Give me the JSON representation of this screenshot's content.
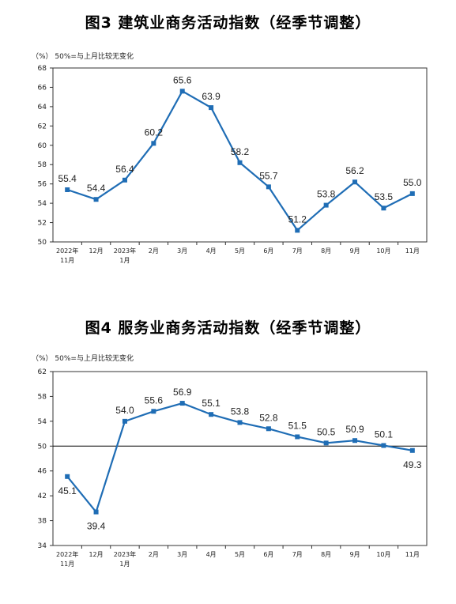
{
  "chart_data": [
    {
      "type": "line",
      "title": "图3  建筑业商务活动指数（经季节调整）",
      "unit_note": "（%）  50%=与上月比较无变化",
      "categories": [
        [
          "2022年",
          "11月"
        ],
        [
          "12月"
        ],
        [
          "2023年",
          "1月"
        ],
        [
          "2月"
        ],
        [
          "3月"
        ],
        [
          "4月"
        ],
        [
          "5月"
        ],
        [
          "6月"
        ],
        [
          "7月"
        ],
        [
          "8月"
        ],
        [
          "9月"
        ],
        [
          "10月"
        ],
        [
          "11月"
        ]
      ],
      "values": [
        55.4,
        54.4,
        56.4,
        60.2,
        65.6,
        63.9,
        58.2,
        55.7,
        51.2,
        53.8,
        56.2,
        53.5,
        55.0
      ],
      "value_labels": [
        "55.4",
        "54.4",
        "56.4",
        "60.2",
        "65.6",
        "63.9",
        "58.2",
        "55.7",
        "51.2",
        "53.8",
        "56.2",
        "53.5",
        "55.0"
      ],
      "label_side": [
        "above",
        "above",
        "above",
        "above",
        "above",
        "above",
        "above",
        "above",
        "above",
        "above",
        "above",
        "above",
        "above"
      ],
      "ylim": [
        50,
        68
      ],
      "yticks": [
        50,
        52,
        54,
        56,
        58,
        60,
        62,
        64,
        66,
        68
      ],
      "ytick_labels": [
        "50",
        "52",
        "54",
        "56",
        "58",
        "60",
        "62",
        "64",
        "66",
        "68"
      ],
      "reference_line": null,
      "color": "#1f6db5",
      "grid": false
    },
    {
      "type": "line",
      "title": "图4  服务业商务活动指数（经季节调整）",
      "unit_note": "（%）  50%=与上月比较无变化",
      "categories": [
        [
          "2022年",
          "11月"
        ],
        [
          "12月"
        ],
        [
          "2023年",
          "1月"
        ],
        [
          "2月"
        ],
        [
          "3月"
        ],
        [
          "4月"
        ],
        [
          "5月"
        ],
        [
          "6月"
        ],
        [
          "7月"
        ],
        [
          "8月"
        ],
        [
          "9月"
        ],
        [
          "10月"
        ],
        [
          "11月"
        ]
      ],
      "values": [
        45.1,
        39.4,
        54.0,
        55.6,
        56.9,
        55.1,
        53.8,
        52.8,
        51.5,
        50.5,
        50.9,
        50.1,
        49.3
      ],
      "value_labels": [
        "45.1",
        "39.4",
        "54.0",
        "55.6",
        "56.9",
        "55.1",
        "53.8",
        "52.8",
        "51.5",
        "50.5",
        "50.9",
        "50.1",
        "49.3"
      ],
      "label_side": [
        "below",
        "below",
        "above",
        "above",
        "above",
        "above",
        "above",
        "above",
        "above",
        "above",
        "above",
        "above",
        "below"
      ],
      "ylim": [
        34,
        62
      ],
      "yticks": [
        34,
        38,
        42,
        46,
        50,
        54,
        58,
        62
      ],
      "ytick_labels": [
        "34",
        "38",
        "42",
        "46",
        "50",
        "54",
        "58",
        "62"
      ],
      "reference_line": 50,
      "color": "#1f6db5",
      "grid": false
    }
  ]
}
